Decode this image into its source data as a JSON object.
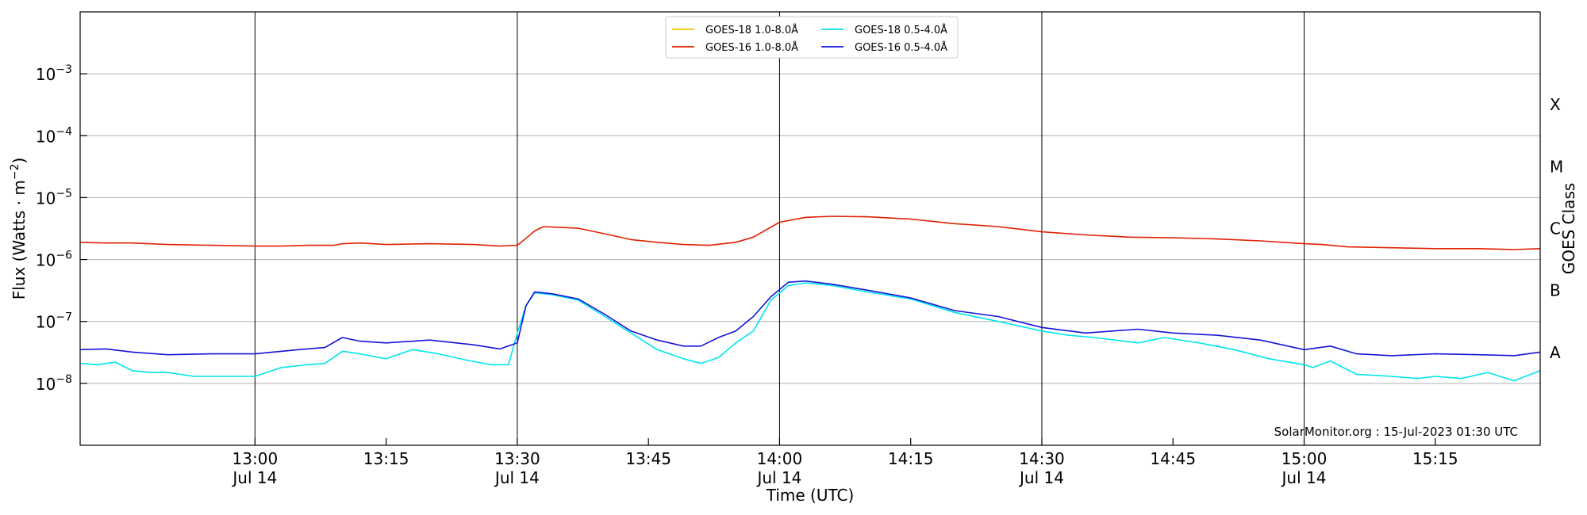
{
  "chart_data": {
    "type": "line",
    "xlabel": "Time (UTC)",
    "ylabel": "Flux (Watts · m",
    "ylabel_sup": "−2",
    "ylabel_close": ")",
    "y2label": "GOES Class",
    "yscale": "log",
    "xlim": [
      "2023-07-14 12:40",
      "2023-07-14 15:27"
    ],
    "ylim": [
      1e-09,
      0.01
    ],
    "grid": "horizontal",
    "legend_position": "top-center",
    "x_ticks": [
      {
        "time": "2023-07-14 13:00",
        "label": "13:00",
        "sublabel": "Jul 14",
        "vline": true
      },
      {
        "time": "2023-07-14 13:15",
        "label": "13:15",
        "sublabel": "",
        "vline": false
      },
      {
        "time": "2023-07-14 13:30",
        "label": "13:30",
        "sublabel": "Jul 14",
        "vline": true
      },
      {
        "time": "2023-07-14 13:45",
        "label": "13:45",
        "sublabel": "",
        "vline": false
      },
      {
        "time": "2023-07-14 14:00",
        "label": "14:00",
        "sublabel": "Jul 14",
        "vline": true
      },
      {
        "time": "2023-07-14 14:15",
        "label": "14:15",
        "sublabel": "",
        "vline": false
      },
      {
        "time": "2023-07-14 14:30",
        "label": "14:30",
        "sublabel": "Jul 14",
        "vline": true
      },
      {
        "time": "2023-07-14 14:45",
        "label": "14:45",
        "sublabel": "",
        "vline": false
      },
      {
        "time": "2023-07-14 15:00",
        "label": "15:00",
        "sublabel": "Jul 14",
        "vline": true
      },
      {
        "time": "2023-07-14 15:15",
        "label": "15:15",
        "sublabel": "",
        "vline": false
      }
    ],
    "y_ticks": [
      {
        "value": 1e-08,
        "label_base": "10",
        "label_exp": "−8"
      },
      {
        "value": 1e-07,
        "label_base": "10",
        "label_exp": "−7"
      },
      {
        "value": 1e-06,
        "label_base": "10",
        "label_exp": "−6"
      },
      {
        "value": 1e-05,
        "label_base": "10",
        "label_exp": "−5"
      },
      {
        "value": 0.0001,
        "label_base": "10",
        "label_exp": "−4"
      },
      {
        "value": 0.001,
        "label_base": "10",
        "label_exp": "−3"
      }
    ],
    "goes_classes": [
      {
        "label": "A",
        "value": 3.16e-08
      },
      {
        "label": "B",
        "value": 3.16e-07
      },
      {
        "label": "C",
        "value": 3.16e-06
      },
      {
        "label": "M",
        "value": 3.16e-05
      },
      {
        "label": "X",
        "value": 0.000316
      }
    ],
    "credit": "SolarMonitor.org : 15-Jul-2023 01:30 UTC",
    "series": [
      {
        "name": "GOES-18 1.0-8.0Å",
        "color": "#f5c400",
        "times": [],
        "values": []
      },
      {
        "name": "GOES-16 1.0-8.0Å",
        "color": "#e02000",
        "times": [
          "2023-07-14 12:40",
          "2023-07-14 12:43",
          "2023-07-14 12:46",
          "2023-07-14 12:50",
          "2023-07-14 12:55",
          "2023-07-14 13:00",
          "2023-07-14 13:03",
          "2023-07-14 13:06",
          "2023-07-14 13:09",
          "2023-07-14 13:10",
          "2023-07-14 13:12",
          "2023-07-14 13:15",
          "2023-07-14 13:20",
          "2023-07-14 13:25",
          "2023-07-14 13:28",
          "2023-07-14 13:30",
          "2023-07-14 13:31",
          "2023-07-14 13:32",
          "2023-07-14 13:33",
          "2023-07-14 13:35",
          "2023-07-14 13:37",
          "2023-07-14 13:40",
          "2023-07-14 13:43",
          "2023-07-14 13:46",
          "2023-07-14 13:49",
          "2023-07-14 13:52",
          "2023-07-14 13:55",
          "2023-07-14 13:57",
          "2023-07-14 14:00",
          "2023-07-14 14:03",
          "2023-07-14 14:06",
          "2023-07-14 14:10",
          "2023-07-14 14:15",
          "2023-07-14 14:20",
          "2023-07-14 14:25",
          "2023-07-14 14:30",
          "2023-07-14 14:35",
          "2023-07-14 14:40",
          "2023-07-14 14:45",
          "2023-07-14 14:50",
          "2023-07-14 14:55",
          "2023-07-14 15:00",
          "2023-07-14 15:02",
          "2023-07-14 15:05",
          "2023-07-14 15:10",
          "2023-07-14 15:15",
          "2023-07-14 15:20",
          "2023-07-14 15:24",
          "2023-07-14 15:27"
        ],
        "values": [
          1.9e-06,
          1.85e-06,
          1.85e-06,
          1.75e-06,
          1.7e-06,
          1.65e-06,
          1.65e-06,
          1.7e-06,
          1.7e-06,
          1.8e-06,
          1.85e-06,
          1.75e-06,
          1.8e-06,
          1.75e-06,
          1.65e-06,
          1.7e-06,
          2.2e-06,
          2.9e-06,
          3.4e-06,
          3.3e-06,
          3.2e-06,
          2.6e-06,
          2.1e-06,
          1.9e-06,
          1.75e-06,
          1.7e-06,
          1.9e-06,
          2.3e-06,
          4e-06,
          4.8e-06,
          5e-06,
          4.9e-06,
          4.5e-06,
          3.8e-06,
          3.4e-06,
          2.8e-06,
          2.5e-06,
          2.3e-06,
          2.25e-06,
          2.15e-06,
          2e-06,
          1.8e-06,
          1.75e-06,
          1.6e-06,
          1.55e-06,
          1.5e-06,
          1.5e-06,
          1.45e-06,
          1.5e-06
        ]
      },
      {
        "name": "GOES-18 0.5-4.0Å",
        "color": "#00e5ee",
        "times": [
          "2023-07-14 12:40",
          "2023-07-14 12:42",
          "2023-07-14 12:44",
          "2023-07-14 12:46",
          "2023-07-14 12:48",
          "2023-07-14 12:50",
          "2023-07-14 12:53",
          "2023-07-14 12:56",
          "2023-07-14 12:58",
          "2023-07-14 13:00",
          "2023-07-14 13:03",
          "2023-07-14 13:06",
          "2023-07-14 13:08",
          "2023-07-14 13:10",
          "2023-07-14 13:12",
          "2023-07-14 13:15",
          "2023-07-14 13:18",
          "2023-07-14 13:21",
          "2023-07-14 13:24",
          "2023-07-14 13:27",
          "2023-07-14 13:29",
          "2023-07-14 13:30",
          "2023-07-14 13:31",
          "2023-07-14 13:32",
          "2023-07-14 13:34",
          "2023-07-14 13:37",
          "2023-07-14 13:40",
          "2023-07-14 13:43",
          "2023-07-14 13:46",
          "2023-07-14 13:49",
          "2023-07-14 13:51",
          "2023-07-14 13:53",
          "2023-07-14 13:55",
          "2023-07-14 13:57",
          "2023-07-14 13:59",
          "2023-07-14 14:01",
          "2023-07-14 14:03",
          "2023-07-14 14:06",
          "2023-07-14 14:10",
          "2023-07-14 14:15",
          "2023-07-14 14:20",
          "2023-07-14 14:25",
          "2023-07-14 14:30",
          "2023-07-14 14:33",
          "2023-07-14 14:36",
          "2023-07-14 14:41",
          "2023-07-14 14:44",
          "2023-07-14 14:48",
          "2023-07-14 14:52",
          "2023-07-14 14:56",
          "2023-07-14 15:00",
          "2023-07-14 15:01",
          "2023-07-14 15:03",
          "2023-07-14 15:06",
          "2023-07-14 15:10",
          "2023-07-14 15:13",
          "2023-07-14 15:15",
          "2023-07-14 15:18",
          "2023-07-14 15:21",
          "2023-07-14 15:24",
          "2023-07-14 15:27"
        ],
        "values": [
          2.1e-08,
          2e-08,
          2.2e-08,
          1.6e-08,
          1.5e-08,
          1.5e-08,
          1.3e-08,
          1.3e-08,
          1.3e-08,
          1.3e-08,
          1.8e-08,
          2e-08,
          2.1e-08,
          3.3e-08,
          3e-08,
          2.5e-08,
          3.5e-08,
          3e-08,
          2.4e-08,
          2e-08,
          2e-08,
          6.5e-08,
          1.8e-07,
          2.9e-07,
          2.7e-07,
          2.2e-07,
          1.2e-07,
          6.5e-08,
          3.5e-08,
          2.5e-08,
          2.1e-08,
          2.6e-08,
          4.5e-08,
          7e-08,
          2.2e-07,
          3.8e-07,
          4.2e-07,
          3.8e-07,
          3e-07,
          2.3e-07,
          1.4e-07,
          1e-07,
          7e-08,
          6e-08,
          5.5e-08,
          4.5e-08,
          5.5e-08,
          4.5e-08,
          3.5e-08,
          2.5e-08,
          2e-08,
          1.8e-08,
          2.3e-08,
          1.4e-08,
          1.3e-08,
          1.2e-08,
          1.3e-08,
          1.2e-08,
          1.5e-08,
          1.1e-08,
          1.6e-08
        ]
      },
      {
        "name": "GOES-16 0.5-4.0Å",
        "color": "#1414d8",
        "times": [
          "2023-07-14 12:40",
          "2023-07-14 12:43",
          "2023-07-14 12:46",
          "2023-07-14 12:50",
          "2023-07-14 12:55",
          "2023-07-14 13:00",
          "2023-07-14 13:05",
          "2023-07-14 13:08",
          "2023-07-14 13:10",
          "2023-07-14 13:12",
          "2023-07-14 13:15",
          "2023-07-14 13:20",
          "2023-07-14 13:25",
          "2023-07-14 13:28",
          "2023-07-14 13:30",
          "2023-07-14 13:31",
          "2023-07-14 13:32",
          "2023-07-14 13:34",
          "2023-07-14 13:37",
          "2023-07-14 13:40",
          "2023-07-14 13:43",
          "2023-07-14 13:46",
          "2023-07-14 13:49",
          "2023-07-14 13:51",
          "2023-07-14 13:53",
          "2023-07-14 13:55",
          "2023-07-14 13:57",
          "2023-07-14 13:59",
          "2023-07-14 14:01",
          "2023-07-14 14:03",
          "2023-07-14 14:06",
          "2023-07-14 14:10",
          "2023-07-14 14:15",
          "2023-07-14 14:20",
          "2023-07-14 14:25",
          "2023-07-14 14:30",
          "2023-07-14 14:35",
          "2023-07-14 14:41",
          "2023-07-14 14:45",
          "2023-07-14 14:50",
          "2023-07-14 14:55",
          "2023-07-14 15:00",
          "2023-07-14 15:03",
          "2023-07-14 15:06",
          "2023-07-14 15:10",
          "2023-07-14 15:15",
          "2023-07-14 15:20",
          "2023-07-14 15:24",
          "2023-07-14 15:27"
        ],
        "values": [
          3.5e-08,
          3.6e-08,
          3.2e-08,
          2.9e-08,
          3e-08,
          3e-08,
          3.5e-08,
          3.8e-08,
          5.5e-08,
          4.8e-08,
          4.5e-08,
          5e-08,
          4.2e-08,
          3.6e-08,
          4.5e-08,
          1.8e-07,
          3e-07,
          2.8e-07,
          2.3e-07,
          1.3e-07,
          7e-08,
          5e-08,
          4e-08,
          4e-08,
          5.5e-08,
          7e-08,
          1.2e-07,
          2.5e-07,
          4.3e-07,
          4.5e-07,
          4e-07,
          3.2e-07,
          2.4e-07,
          1.5e-07,
          1.2e-07,
          8e-08,
          6.5e-08,
          7.5e-08,
          6.5e-08,
          6e-08,
          5e-08,
          3.5e-08,
          4e-08,
          3e-08,
          2.8e-08,
          3e-08,
          2.9e-08,
          2.8e-08,
          3.2e-08
        ]
      }
    ]
  }
}
